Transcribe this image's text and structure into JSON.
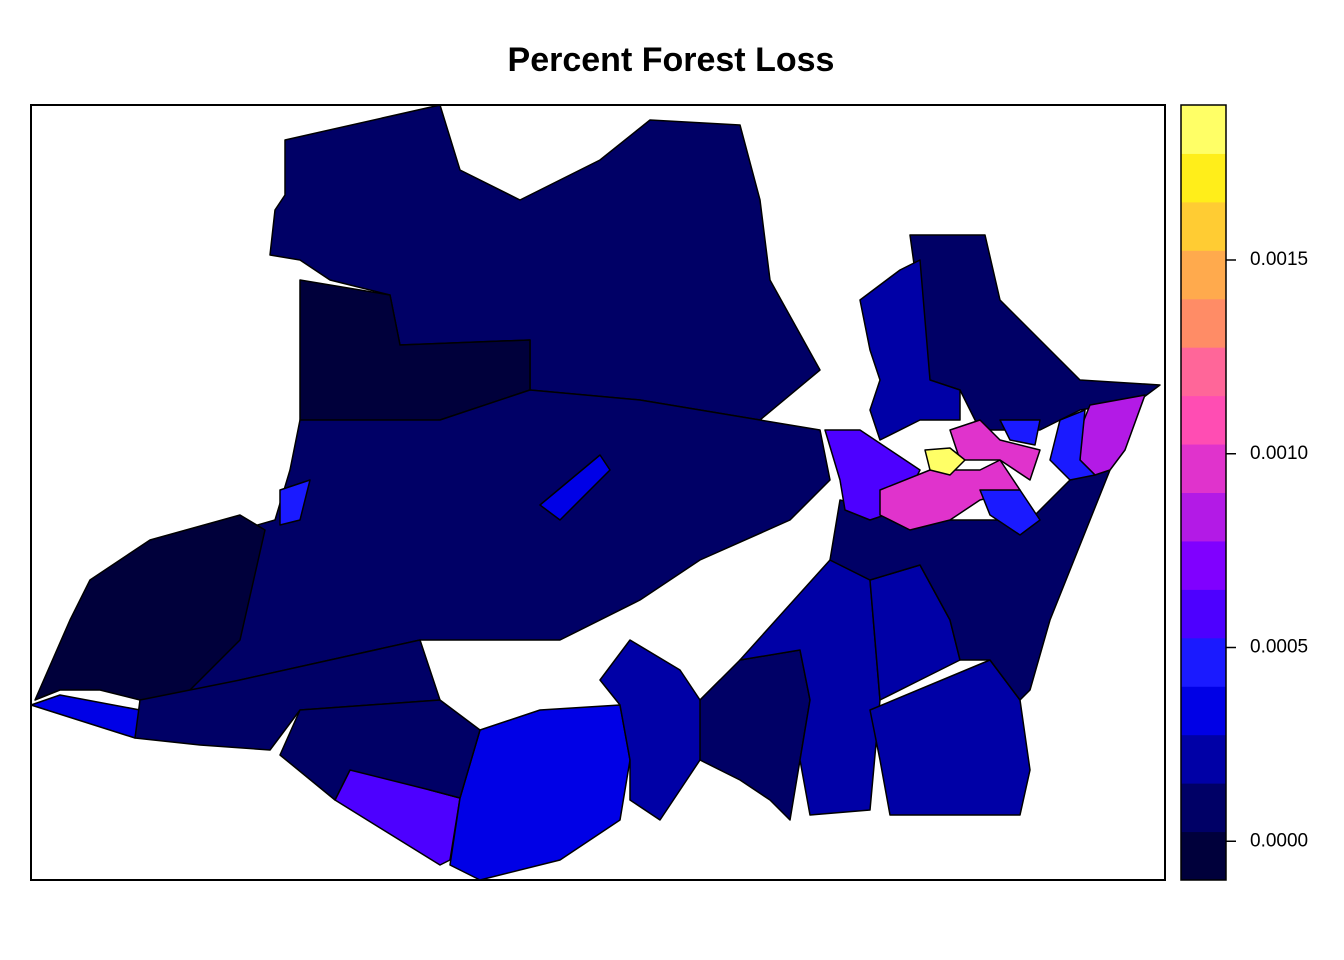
{
  "chart_data": {
    "type": "choropleth",
    "title": "Percent Forest Loss",
    "breaks": [
      -0.0001,
      2.5e-05,
      0.00015,
      0.000275,
      0.0004,
      0.000525,
      0.00065,
      0.000775,
      0.0009,
      0.001025,
      0.00115,
      0.001275,
      0.0014,
      0.001525,
      0.00165,
      0.001775,
      0.0019
    ],
    "colors": [
      "#00003B",
      "#000066",
      "#0000A6",
      "#0000E6",
      "#1A1AFF",
      "#4D00FF",
      "#8000FF",
      "#B31AE6",
      "#E033CC",
      "#FF4DB3",
      "#FF6699",
      "#FF8C66",
      "#FFAA4D",
      "#FFCC33",
      "#FFEE1A",
      "#FFFF66"
    ],
    "zlim": [
      -0.0001,
      0.0019
    ],
    "zticks": [
      {
        "value": 0,
        "label": "0.0000"
      },
      {
        "value": 0.0005,
        "label": "0.0005"
      },
      {
        "value": 0.001,
        "label": "0.0010"
      },
      {
        "value": 0.0015,
        "label": "0.0015"
      }
    ],
    "regions": [
      {
        "value": 5e-05
      },
      {
        "value": -5e-05
      },
      {
        "value": 5e-05
      },
      {
        "value": -5e-05
      },
      {
        "value": 0.0003
      },
      {
        "value": 5e-05
      },
      {
        "value": 0.0006
      },
      {
        "value": 0.00035
      },
      {
        "value": 5e-05
      },
      {
        "value": 0.0002
      },
      {
        "value": 5e-05
      },
      {
        "value": 0.0002
      },
      {
        "value": 0.0002
      },
      {
        "value": 0.0002
      },
      {
        "value": 5e-05
      },
      {
        "value": 5e-05
      },
      {
        "value": 0.0002
      },
      {
        "value": 0.0006
      },
      {
        "value": 0.0009
      },
      {
        "value": 0.0009
      },
      {
        "value": 0.00185
      },
      {
        "value": 0.0008
      },
      {
        "value": 0.0005
      },
      {
        "value": 0.0004
      },
      {
        "value": 0.0004
      },
      {
        "value": 0.0004
      },
      {
        "value": 0.0003
      }
    ]
  }
}
